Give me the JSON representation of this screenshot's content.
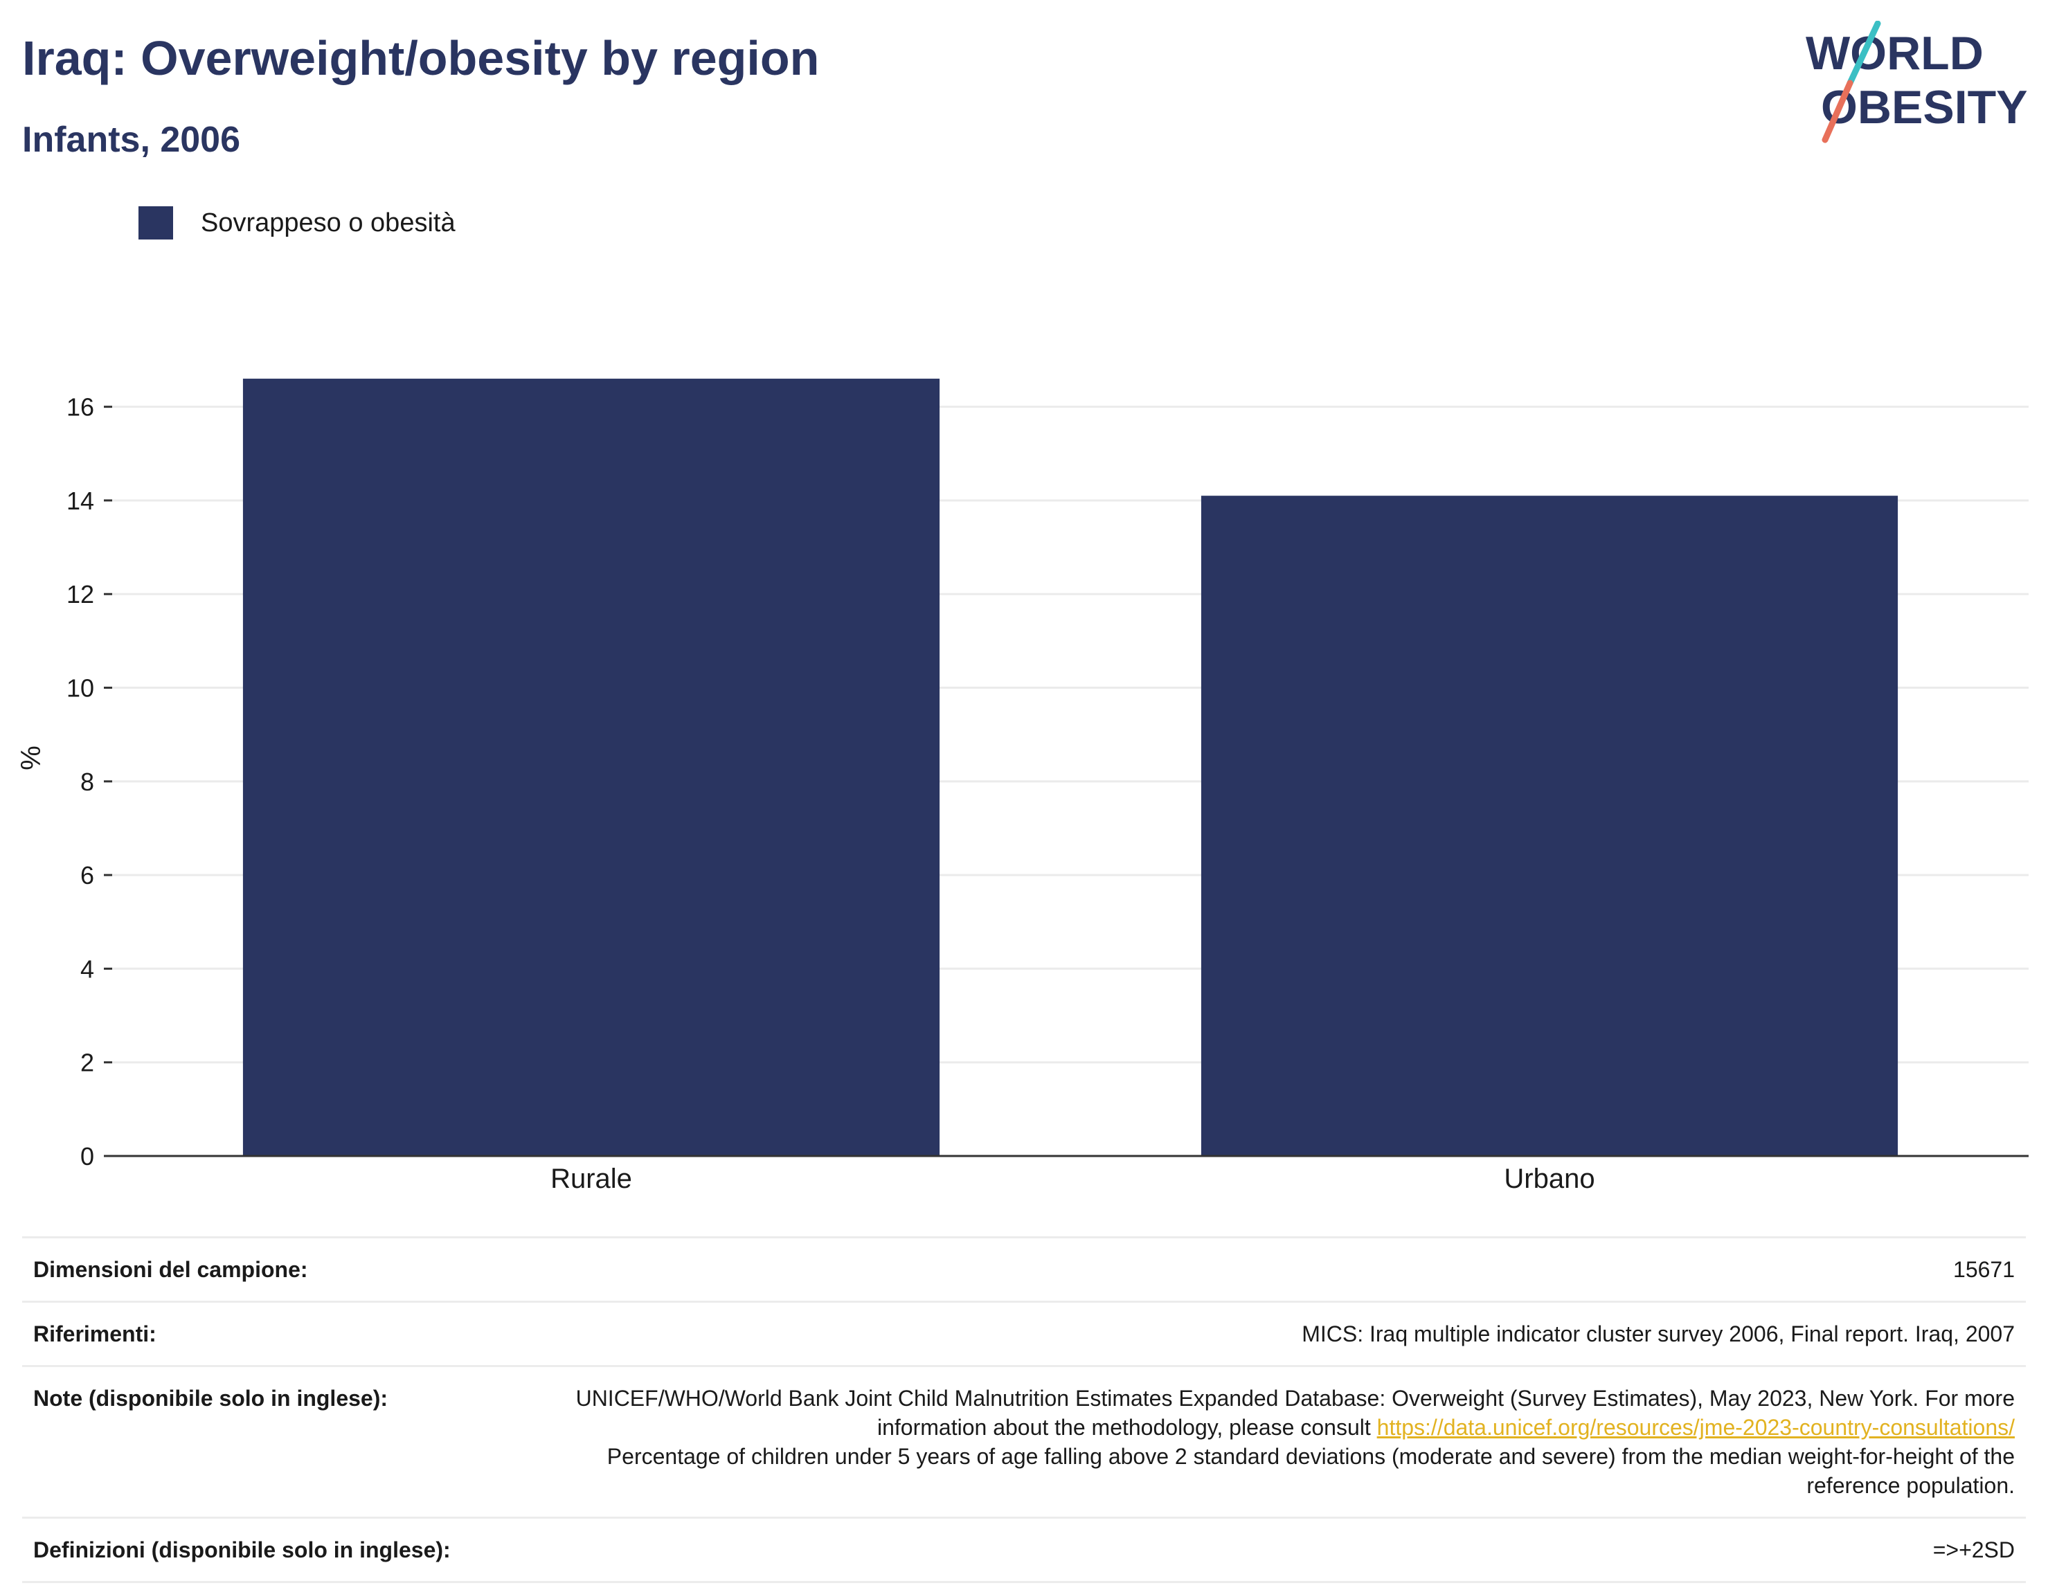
{
  "header": {
    "title": "Iraq: Overweight/obesity by region",
    "subtitle": "Infants, 2006"
  },
  "logo": {
    "line1": "WORLD",
    "line2": "OBESITY",
    "colors": {
      "text": "#2a3561",
      "slash_teal": "#3bbfc4",
      "slash_coral": "#e8705a"
    }
  },
  "chart_data": {
    "type": "bar",
    "categories": [
      "Rurale",
      "Urbano"
    ],
    "series": [
      {
        "name": "Sovrappeso o obesità",
        "values": [
          16.6,
          14.1
        ],
        "color": "#2a3561"
      }
    ],
    "xlabel": "",
    "ylabel": "%",
    "ylim": [
      0,
      17
    ],
    "yticks": [
      0,
      2,
      4,
      6,
      8,
      10,
      12,
      14,
      16
    ],
    "grid": true,
    "legend_position": "top-left"
  },
  "info": {
    "sample_label": "Dimensioni del campione:",
    "sample_value": "15671",
    "references_label": "Riferimenti:",
    "references_value": "MICS: Iraq multiple indicator cluster survey 2006, Final report. Iraq, 2007",
    "notes_label": "Note (disponibile solo in inglese):",
    "notes_text_1": "UNICEF/WHO/World Bank Joint Child Malnutrition Estimates Expanded Database: Overweight (Survey Estimates), May 2023, New York. For more information about the methodology, please consult ",
    "notes_link": "https://data.unicef.org/resources/jme-2023-country-consultations/",
    "notes_text_2": "Percentage of children under 5 years of age falling above 2 standard deviations (moderate and severe) from the median weight-for-height of the reference population.",
    "definitions_label": "Definizioni (disponibile solo in inglese):",
    "definitions_value": "=>+2SD"
  }
}
